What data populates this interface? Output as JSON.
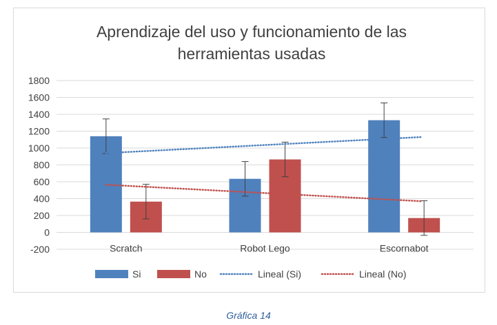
{
  "caption": "Gráfica 14",
  "chart_data": {
    "type": "bar",
    "title_lines": [
      "Aprendizaje del uso y funcionamiento de las",
      "herramientas usadas"
    ],
    "categories": [
      "Scratch",
      "Robot Lego",
      "Escornabot"
    ],
    "series": [
      {
        "name": "Si",
        "color": "#4f81bd",
        "values": [
          1140,
          635,
          1330
        ],
        "error": 205
      },
      {
        "name": "No",
        "color": "#c0504d",
        "values": [
          365,
          865,
          170
        ],
        "error": 205
      }
    ],
    "trendlines": [
      {
        "name": "Lineal (Si)",
        "series": "Si",
        "color": "#4f81bd",
        "style": "dotted",
        "values": [
          940,
          1035,
          1130
        ]
      },
      {
        "name": "Lineal (No)",
        "series": "No",
        "color": "#c0504d",
        "style": "dotted",
        "values": [
          565,
          467,
          370
        ]
      }
    ],
    "ylim": [
      -200,
      1800
    ],
    "yticks": [
      "1800",
      "1600",
      "1400",
      "1200",
      "1000",
      "800",
      "600",
      "400",
      "200",
      "0",
      "-200"
    ],
    "grid": true,
    "legend_position": "bottom",
    "xlabel": "",
    "ylabel": ""
  }
}
